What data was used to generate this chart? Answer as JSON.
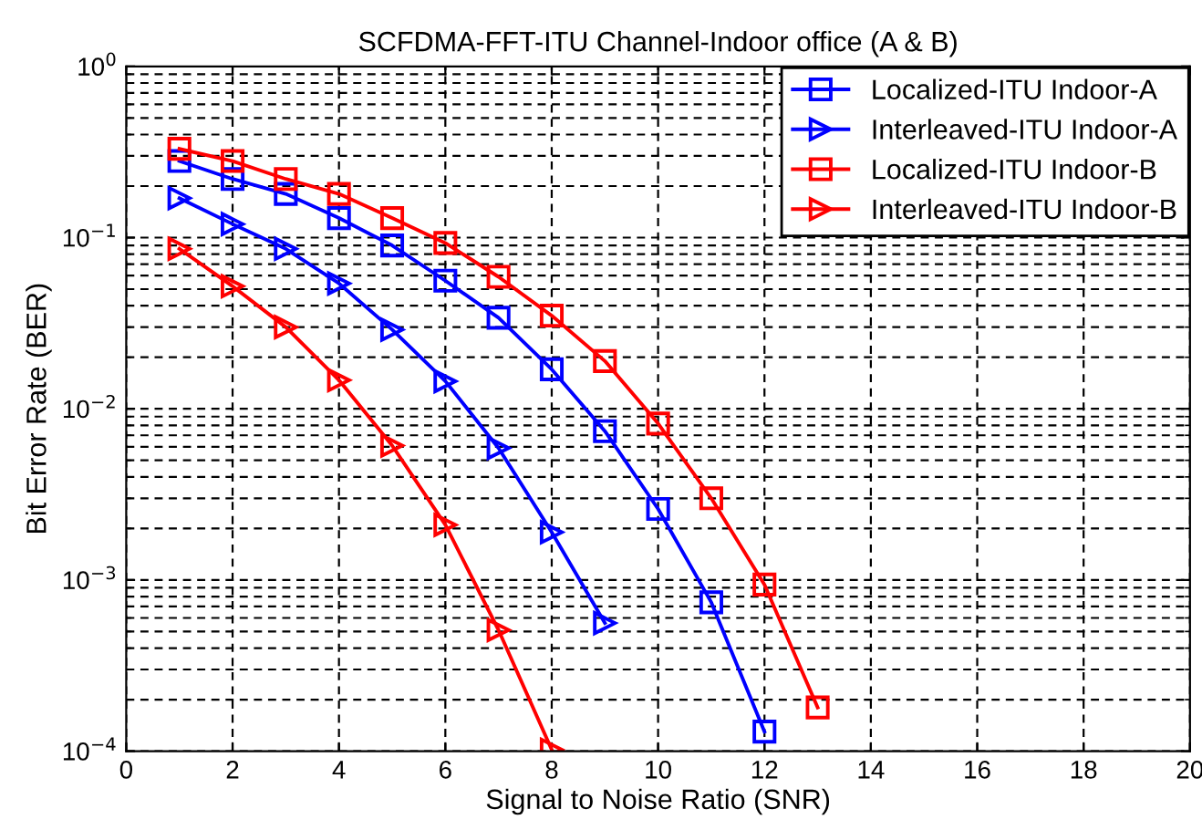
{
  "chart_data": {
    "type": "line",
    "title": "SCFDMA-FFT-ITU Channel-Indoor office (A & B)",
    "xlabel": "Signal to Noise Ratio (SNR)",
    "ylabel": "Bit Error Rate (BER)",
    "log": "y",
    "xlim": [
      0,
      20
    ],
    "xticks": [
      0,
      2,
      4,
      6,
      8,
      10,
      12,
      14,
      16,
      18,
      20
    ],
    "ylim": [
      0.0001,
      1
    ],
    "yticks": [
      {
        "value": 0.0001,
        "label": "10$^{−4}$"
      },
      {
        "value": 0.001,
        "label": "10$^{−3}$"
      },
      {
        "value": 0.01,
        "label": "10$^{−2}$"
      },
      {
        "value": 0.1,
        "label": "10$^{−1}$"
      },
      {
        "value": 1,
        "label": "10$^{0}$"
      }
    ],
    "grid": true,
    "legend": "top right",
    "line_style": "solid",
    "series": [
      {
        "name": "Localized-ITU Indoor-A",
        "color": "#0000ff",
        "marker": "square",
        "x": [
          1,
          2,
          3,
          4,
          5,
          6,
          7,
          8,
          9,
          10,
          11,
          12
        ],
        "values": [
          0.28,
          0.22,
          0.18,
          0.13,
          0.09,
          0.056,
          0.034,
          0.017,
          0.0074,
          0.0026,
          0.00074,
          0.00013
        ]
      },
      {
        "name": "Interleaved-ITU Indoor-A",
        "color": "#0000ff",
        "marker": "triangle",
        "x": [
          1,
          2,
          3,
          4,
          5,
          6,
          7,
          8,
          9
        ],
        "values": [
          0.17,
          0.12,
          0.086,
          0.054,
          0.029,
          0.0145,
          0.0059,
          0.0019,
          0.00056
        ]
      },
      {
        "name": "Localized-ITU Indoor-B",
        "color": "#ff0000",
        "marker": "square",
        "x": [
          1,
          2,
          3,
          4,
          5,
          6,
          7,
          8,
          9,
          10,
          11,
          12,
          13
        ],
        "values": [
          0.33,
          0.28,
          0.22,
          0.18,
          0.13,
          0.093,
          0.059,
          0.035,
          0.019,
          0.0082,
          0.003,
          0.00094,
          0.00018
        ]
      },
      {
        "name": "Interleaved-ITU Indoor-B",
        "color": "#ff0000",
        "marker": "triangle",
        "x": [
          1,
          2,
          3,
          4,
          5,
          6,
          7,
          8
        ],
        "values": [
          0.086,
          0.052,
          0.03,
          0.0147,
          0.0061,
          0.0021,
          0.00051,
          0.000102
        ]
      }
    ]
  }
}
